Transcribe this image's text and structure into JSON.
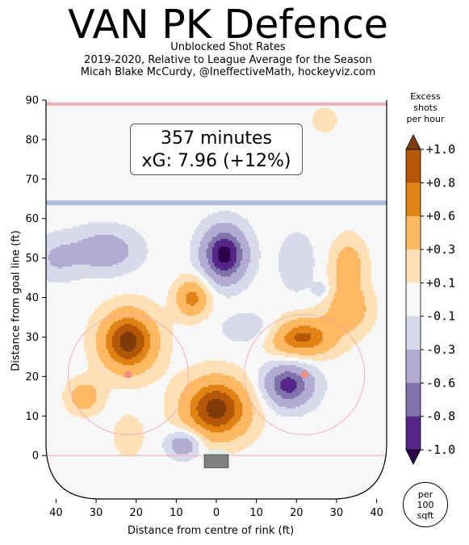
{
  "title": "VAN PK Defence",
  "subtitle_lines": [
    "Unblocked Shot Rates",
    "2019-2020, Relative to League Average for the Season",
    "Micah Blake McCurdy, @IneffectiveMath, hockeyviz.com"
  ],
  "annotation": {
    "minutes": "357 minutes",
    "xg": "xG: 7.96 (+12%)"
  },
  "colorbar": {
    "title_lines": [
      "Excess",
      "shots",
      "per hour"
    ],
    "tick_labels": [
      "+1.0",
      "+0.8",
      "+0.6",
      "+0.3",
      "+0.1",
      "-0.1",
      "-0.3",
      "-0.6",
      "-0.8",
      "-1.0"
    ],
    "colors": [
      "#7f3b08",
      "#b35806",
      "#e08214",
      "#fdb863",
      "#fee0b6",
      "#f7f7f7",
      "#d8daeb",
      "#b2abd2",
      "#8073ac",
      "#542788",
      "#2d004b"
    ],
    "per_area_lines": [
      "per",
      "100",
      "sqft"
    ]
  },
  "chart_data": {
    "type": "heatmap",
    "xlabel": "Distance from centre of rink (ft)",
    "ylabel": "Distance from goal line (ft)",
    "xlim": [
      -42.5,
      42.5
    ],
    "ylim": [
      -11,
      90
    ],
    "xticks": [
      -40,
      -30,
      -20,
      -10,
      0,
      10,
      20,
      30,
      40
    ],
    "xtick_labels": [
      "40",
      "30",
      "20",
      "10",
      "0",
      "10",
      "20",
      "30",
      "40"
    ],
    "yticks": [
      0,
      10,
      20,
      30,
      40,
      50,
      60,
      70,
      80,
      90
    ],
    "ytick_labels": [
      "0",
      "10",
      "20",
      "30",
      "40",
      "50",
      "60",
      "70",
      "80",
      "90"
    ],
    "levels": [
      -1.0,
      -0.8,
      -0.6,
      -0.3,
      -0.1,
      0.1,
      0.3,
      0.6,
      0.8,
      1.0
    ],
    "hotspots": [
      {
        "x": 0,
        "y": 12,
        "peak": 1.1,
        "sx": 6,
        "sy": 5.5
      },
      {
        "x": -22,
        "y": 29,
        "peak": 1.1,
        "sx": 5,
        "sy": 5.5
      },
      {
        "x": 21,
        "y": 30,
        "peak": 0.9,
        "sx": 6,
        "sy": 3.5
      },
      {
        "x": -6,
        "y": 40,
        "peak": 0.7,
        "sx": 3,
        "sy": 3.5
      },
      {
        "x": 33,
        "y": 48,
        "peak": 0.5,
        "sx": 3,
        "sy": 5
      },
      {
        "x": 33,
        "y": 37,
        "peak": 0.5,
        "sx": 4,
        "sy": 4
      },
      {
        "x": -33,
        "y": 15,
        "peak": 0.5,
        "sx": 3,
        "sy": 3
      },
      {
        "x": -22,
        "y": 5,
        "peak": 0.3,
        "sx": 2.5,
        "sy": 3.5
      },
      {
        "x": 27,
        "y": 85,
        "peak": 0.3,
        "sx": 2,
        "sy": 2
      },
      {
        "x": 2,
        "y": 51,
        "peak": -1.1,
        "sx": 4,
        "sy": 5
      },
      {
        "x": 18,
        "y": 18,
        "peak": -0.9,
        "sx": 4.5,
        "sy": 4
      },
      {
        "x": -28,
        "y": 52,
        "peak": -0.5,
        "sx": 6,
        "sy": 4
      },
      {
        "x": -8,
        "y": 3,
        "peak": -0.6,
        "sx": 3,
        "sy": 2.5
      },
      {
        "x": 20,
        "y": 49,
        "peak": -0.3,
        "sx": 3,
        "sy": 5
      },
      {
        "x": 26,
        "y": 42,
        "peak": -0.25,
        "sx": 1.5,
        "sy": 1.5
      },
      {
        "x": 10,
        "y": 32,
        "peak": -0.3,
        "sx": 6,
        "sy": 3
      },
      {
        "x": -40,
        "y": 50,
        "peak": -0.3,
        "sx": 4,
        "sy": 4
      }
    ]
  }
}
